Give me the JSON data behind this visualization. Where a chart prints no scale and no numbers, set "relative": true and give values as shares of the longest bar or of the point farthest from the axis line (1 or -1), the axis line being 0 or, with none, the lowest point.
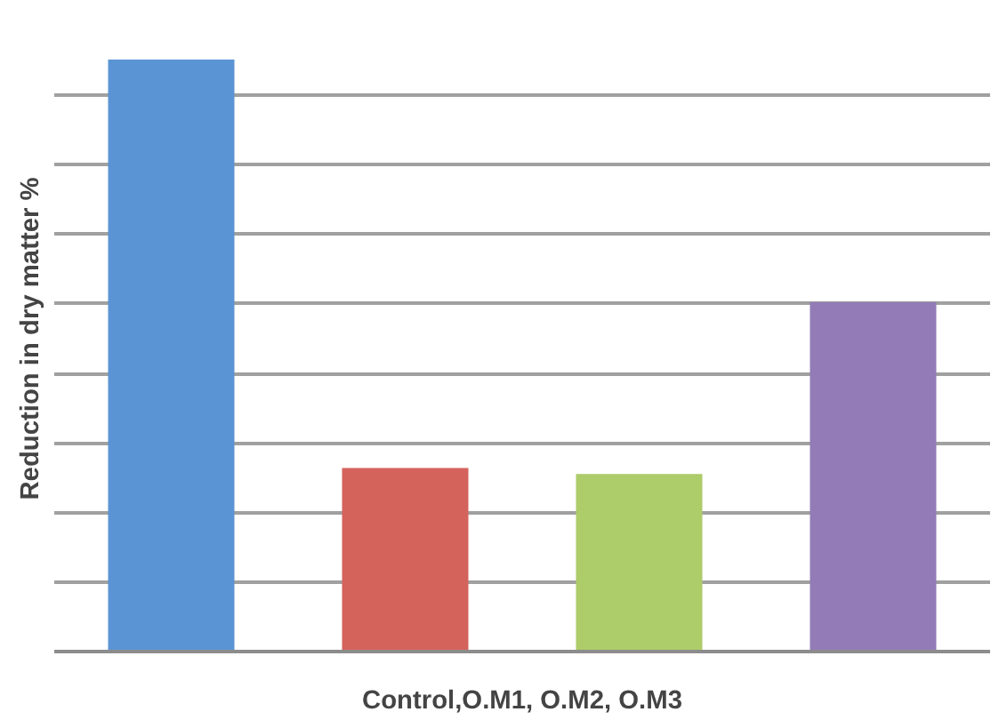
{
  "chart_data": {
    "type": "bar",
    "xlabel": "Control,O.M1, O.M2, O.M3",
    "ylabel": "Reduction in dry matter %",
    "categories": [
      null,
      null,
      null,
      null
    ],
    "values": [
      1,
      0.31,
      0.3,
      0.59
    ],
    "colors": [
      "#5b94d4",
      "#d4635c",
      "#adcc6a",
      "#927bb6"
    ],
    "relative": true,
    "grid": "y"
  }
}
